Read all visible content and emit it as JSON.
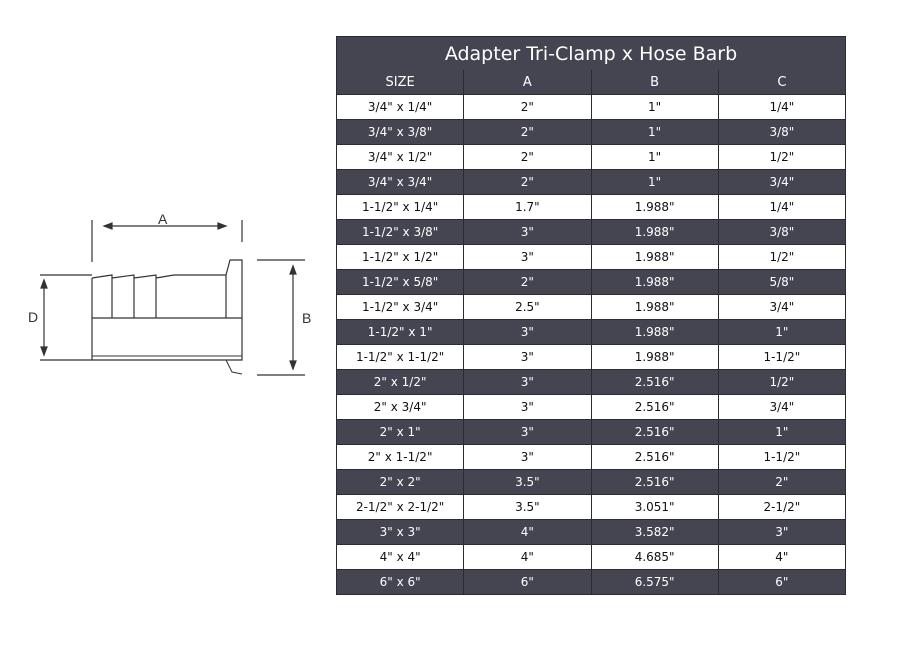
{
  "drawing": {
    "labels": {
      "a": "A",
      "b": "B",
      "d": "D"
    }
  },
  "table": {
    "title": "Adapter Tri-Clamp x Hose Barb",
    "headers": [
      "SIZE",
      "A",
      "B",
      "C"
    ],
    "header_color": "#444550",
    "rows": [
      [
        "3/4\" x 1/4\"",
        "2\"",
        "1\"",
        "1/4\""
      ],
      [
        "3/4\" x 3/8\"",
        "2\"",
        "1\"",
        "3/8\""
      ],
      [
        "3/4\" x 1/2\"",
        "2\"",
        "1\"",
        "1/2\""
      ],
      [
        "3/4\" x 3/4\"",
        "2\"",
        "1\"",
        "3/4\""
      ],
      [
        "1-1/2\" x 1/4\"",
        "1.7\"",
        "1.988\"",
        "1/4\""
      ],
      [
        "1-1/2\" x 3/8\"",
        "3\"",
        "1.988\"",
        "3/8\""
      ],
      [
        "1-1/2\" x 1/2\"",
        "3\"",
        "1.988\"",
        "1/2\""
      ],
      [
        "1-1/2\" x 5/8\"",
        "2\"",
        "1.988\"",
        "5/8\""
      ],
      [
        "1-1/2\" x 3/4\"",
        "2.5\"",
        "1.988\"",
        "3/4\""
      ],
      [
        "1-1/2\" x 1\"",
        "3\"",
        "1.988\"",
        "1\""
      ],
      [
        "1-1/2\" x 1-1/2\"",
        "3\"",
        "1.988\"",
        "1-1/2\""
      ],
      [
        "2\" x 1/2\"",
        "3\"",
        "2.516\"",
        "1/2\""
      ],
      [
        "2\" x 3/4\"",
        "3\"",
        "2.516\"",
        "3/4\""
      ],
      [
        "2\" x 1\"",
        "3\"",
        "2.516\"",
        "1\""
      ],
      [
        "2\" x 1-1/2\"",
        "3\"",
        "2.516\"",
        "1-1/2\""
      ],
      [
        "2\" x 2\"",
        "3.5\"",
        "2.516\"",
        "2\""
      ],
      [
        "2-1/2\" x 2-1/2\"",
        "3.5\"",
        "3.051\"",
        "2-1/2\""
      ],
      [
        "3\" x 3\"",
        "4\"",
        "3.582\"",
        "3\""
      ],
      [
        "4\" x 4\"",
        "4\"",
        "4.685\"",
        "4\""
      ],
      [
        "6\" x 6\"",
        "6\"",
        "6.575\"",
        "6\""
      ]
    ]
  }
}
